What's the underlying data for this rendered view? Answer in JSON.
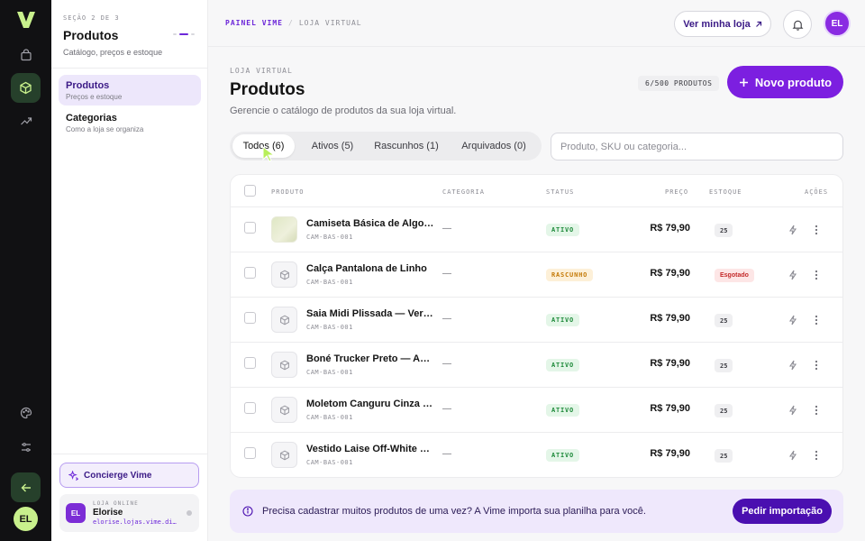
{
  "rail": {
    "logo": "v-logo",
    "items": [
      {
        "icon": "bag-icon"
      },
      {
        "icon": "box-icon"
      },
      {
        "icon": "trend-icon"
      },
      {
        "icon": "palette-icon"
      },
      {
        "icon": "sliders-icon"
      },
      {
        "icon": "arrow-left-icon"
      }
    ],
    "user_initials": "EL"
  },
  "side": {
    "kicker": "SEÇÃO 2 DE 3",
    "title": "Produtos",
    "subtitle": "Catálogo, preços e estoque",
    "nav": [
      {
        "label": "Produtos",
        "hint": "Preços e estoque"
      },
      {
        "label": "Categorias",
        "hint": "Como a loja se organiza"
      }
    ],
    "concierge": "Concierge Vime",
    "store": {
      "kicker": "LOJA ONLINE",
      "name": "Elorise",
      "url": "elorise.lojas.vime.digital",
      "initials": "EL"
    }
  },
  "topbar": {
    "crumb_1": "PAINEL VIME",
    "crumb_sep": "/",
    "crumb_2": "LOJA VIRTUAL",
    "view_store": "Ver minha loja",
    "user_initials": "EL"
  },
  "page": {
    "kicker": "LOJA VIRTUAL",
    "title": "Produtos",
    "subtitle": "Gerencie o catálogo de produtos da sua loja virtual.",
    "count": "6/500 PRODUTOS",
    "new_button": "Novo produto"
  },
  "tabs": [
    {
      "label": "Todos (6)",
      "active": true
    },
    {
      "label": "Ativos (5)",
      "active": false
    },
    {
      "label": "Rascunhos (1)",
      "active": false
    },
    {
      "label": "Arquivados (0)",
      "active": false
    }
  ],
  "search": {
    "placeholder": "Produto, SKU ou categoria..."
  },
  "table": {
    "headers": {
      "product": "PRODUTO",
      "category": "CATEGORIA",
      "status": "STATUS",
      "price": "PREÇO",
      "stock": "ESTOQUE",
      "actions": "AÇÕES"
    },
    "rows": [
      {
        "name": "Camiseta Básica de Algodão",
        "sku": "CAM-BAS-001",
        "category": "—",
        "status": "ATIVO",
        "price": "R$ 79,90",
        "stock": "25"
      },
      {
        "name": "Calça Pantalona de Linho",
        "sku": "CAM-BAS-001",
        "category": "—",
        "status": "RASCUNHO",
        "price": "R$ 79,90",
        "stock": "Esgotado"
      },
      {
        "name": "Saia Midi Plissada — Verde",
        "sku": "CAM-BAS-001",
        "category": "—",
        "status": "ATIVO",
        "price": "R$ 79,90",
        "stock": "25"
      },
      {
        "name": "Boné Trucker Preto — Aba Curva",
        "sku": "CAM-BAS-001",
        "category": "—",
        "status": "ATIVO",
        "price": "R$ 79,90",
        "stock": "25"
      },
      {
        "name": "Moletom Canguru Cinza Mescla",
        "sku": "CAM-BAS-001",
        "category": "—",
        "status": "ATIVO",
        "price": "R$ 79,90",
        "stock": "25"
      },
      {
        "name": "Vestido Laise Off-White Midi",
        "sku": "CAM-BAS-001",
        "category": "—",
        "status": "ATIVO",
        "price": "R$ 79,90",
        "stock": "25"
      }
    ]
  },
  "banner": {
    "text": "Precisa cadastrar muitos produtos de uma vez? A Vime importa sua planilha para você.",
    "button": "Pedir importação"
  },
  "colors": {
    "accent": "#7c1fe0",
    "rail_bg": "#111113",
    "rail_active": "#26402b",
    "lime": "#c8f08c"
  }
}
